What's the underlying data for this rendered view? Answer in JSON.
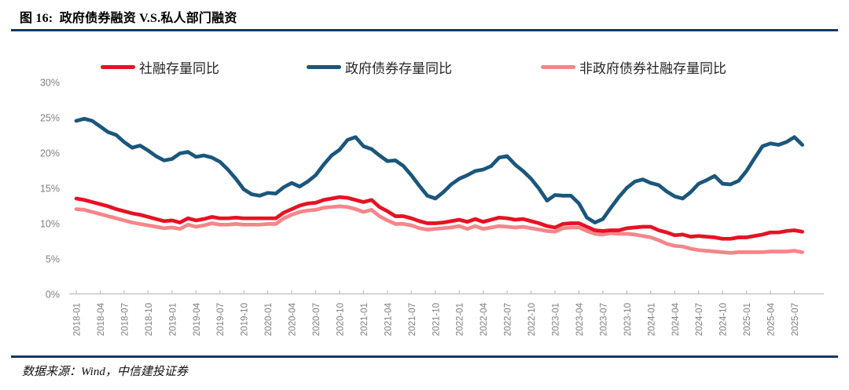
{
  "figure": {
    "title": "图 16:  政府债券融资 V.S.私人部门融资",
    "source": "数据来源：Wind，中信建投证券"
  },
  "colors": {
    "accent_rule": "#17375e",
    "axis_text": "#7f7f7f",
    "axis_line": "#bfbfbf",
    "series_red": "#e81123",
    "series_blue": "#1b567c",
    "series_pink": "#f4868a"
  },
  "chart_data": {
    "type": "line",
    "title": "图 16: 政府债券融资 V.S.私人部门融资",
    "xlabel": "",
    "ylabel": "",
    "ylim": [
      0,
      30
    ],
    "y_ticks": [
      "0%",
      "5%",
      "10%",
      "15%",
      "20%",
      "25%",
      "30%"
    ],
    "x_tick_every": 3,
    "grid": false,
    "legend_position": "top",
    "x": [
      "2018-01",
      "2018-02",
      "2018-03",
      "2018-04",
      "2018-05",
      "2018-06",
      "2018-07",
      "2018-08",
      "2018-09",
      "2018-10",
      "2018-11",
      "2018-12",
      "2019-01",
      "2019-02",
      "2019-03",
      "2019-04",
      "2019-05",
      "2019-06",
      "2019-07",
      "2019-08",
      "2019-09",
      "2019-10",
      "2019-11",
      "2019-12",
      "2020-01",
      "2020-02",
      "2020-03",
      "2020-04",
      "2020-05",
      "2020-06",
      "2020-07",
      "2020-08",
      "2020-09",
      "2020-10",
      "2020-11",
      "2020-12",
      "2021-01",
      "2021-02",
      "2021-03",
      "2021-04",
      "2021-05",
      "2021-06",
      "2021-07",
      "2021-08",
      "2021-09",
      "2021-10",
      "2021-11",
      "2021-12",
      "2022-01",
      "2022-02",
      "2022-03",
      "2022-04",
      "2022-05",
      "2022-06",
      "2022-07",
      "2022-08",
      "2022-09",
      "2022-10",
      "2022-11",
      "2022-12",
      "2023-01",
      "2023-02",
      "2023-03",
      "2023-04",
      "2023-05",
      "2023-06",
      "2023-07",
      "2023-08",
      "2023-09",
      "2023-10",
      "2023-11",
      "2023-12",
      "2024-01",
      "2024-02",
      "2024-03",
      "2024-04",
      "2024-05",
      "2024-06",
      "2024-07",
      "2024-08",
      "2024-09",
      "2024-10",
      "2024-11",
      "2024-12",
      "2025-01",
      "2025-02",
      "2025-03",
      "2025-04",
      "2025-05",
      "2025-06",
      "2025-07",
      "2025-08"
    ],
    "series": [
      {
        "name": "社融存量同比",
        "color": "#e81123",
        "values": [
          13.5,
          13.3,
          13.0,
          12.7,
          12.4,
          12.0,
          11.7,
          11.4,
          11.2,
          10.9,
          10.6,
          10.3,
          10.4,
          10.1,
          10.7,
          10.4,
          10.6,
          10.9,
          10.7,
          10.7,
          10.8,
          10.7,
          10.7,
          10.7,
          10.7,
          10.7,
          11.5,
          12.0,
          12.5,
          12.8,
          12.9,
          13.3,
          13.5,
          13.7,
          13.6,
          13.3,
          13.0,
          13.3,
          12.3,
          11.7,
          11.0,
          11.0,
          10.7,
          10.3,
          10.0,
          10.0,
          10.1,
          10.3,
          10.5,
          10.2,
          10.6,
          10.2,
          10.5,
          10.8,
          10.7,
          10.5,
          10.6,
          10.3,
          10.0,
          9.6,
          9.4,
          9.9,
          10.0,
          10.0,
          9.5,
          9.0,
          8.9,
          9.0,
          9.0,
          9.3,
          9.4,
          9.5,
          9.5,
          9.0,
          8.7,
          8.3,
          8.4,
          8.1,
          8.2,
          8.1,
          8.0,
          7.8,
          7.8,
          8.0,
          8.0,
          8.2,
          8.4,
          8.7,
          8.7,
          8.9,
          9.0,
          8.8
        ]
      },
      {
        "name": "政府债券存量同比",
        "color": "#1b567c",
        "values": [
          24.5,
          24.8,
          24.5,
          23.7,
          22.9,
          22.5,
          21.5,
          20.7,
          21.0,
          20.3,
          19.5,
          18.9,
          19.1,
          19.9,
          20.1,
          19.4,
          19.6,
          19.3,
          18.7,
          17.6,
          16.3,
          14.8,
          14.1,
          13.9,
          14.3,
          14.2,
          15.1,
          15.7,
          15.2,
          15.9,
          16.8,
          18.3,
          19.6,
          20.4,
          21.8,
          22.2,
          20.9,
          20.5,
          19.6,
          18.8,
          18.9,
          18.1,
          16.8,
          15.3,
          13.9,
          13.5,
          14.4,
          15.5,
          16.3,
          16.8,
          17.4,
          17.6,
          18.1,
          19.3,
          19.5,
          18.3,
          17.4,
          16.3,
          14.9,
          13.2,
          14.0,
          13.9,
          13.9,
          12.8,
          10.8,
          10.1,
          10.6,
          12.2,
          13.7,
          15.0,
          15.9,
          16.2,
          15.7,
          15.4,
          14.5,
          13.8,
          13.5,
          14.4,
          15.6,
          16.1,
          16.7,
          15.6,
          15.5,
          16.0,
          17.4,
          19.2,
          20.9,
          21.3,
          21.1,
          21.5,
          22.2,
          21.1
        ]
      },
      {
        "name": "非政府债券社融存量同比",
        "color": "#f4868a",
        "values": [
          12.0,
          11.9,
          11.6,
          11.3,
          11.0,
          10.7,
          10.4,
          10.1,
          9.9,
          9.7,
          9.5,
          9.3,
          9.4,
          9.2,
          9.8,
          9.5,
          9.7,
          10.0,
          9.8,
          9.8,
          9.9,
          9.8,
          9.8,
          9.8,
          9.9,
          9.9,
          10.7,
          11.2,
          11.6,
          11.8,
          11.9,
          12.2,
          12.3,
          12.4,
          12.3,
          12.0,
          11.6,
          11.9,
          11.0,
          10.4,
          9.9,
          9.9,
          9.7,
          9.3,
          9.1,
          9.2,
          9.3,
          9.4,
          9.6,
          9.2,
          9.6,
          9.2,
          9.4,
          9.6,
          9.5,
          9.4,
          9.5,
          9.3,
          9.1,
          8.9,
          8.8,
          9.3,
          9.4,
          9.4,
          8.9,
          8.5,
          8.4,
          8.6,
          8.5,
          8.5,
          8.4,
          8.2,
          8.0,
          7.6,
          7.1,
          6.8,
          6.7,
          6.4,
          6.2,
          6.1,
          6.0,
          5.9,
          5.8,
          5.9,
          5.9,
          5.9,
          5.9,
          6.0,
          6.0,
          6.0,
          6.1,
          5.9
        ]
      }
    ]
  }
}
